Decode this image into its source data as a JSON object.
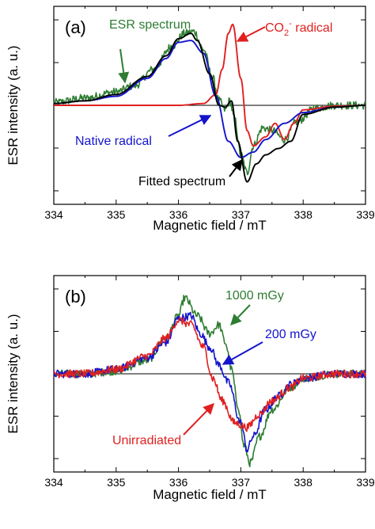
{
  "chart_data": [
    {
      "type": "line",
      "panel_label": "(a)",
      "xlabel": "Magnetic field / mT",
      "ylabel": "ESR intensity (a. u.)",
      "xlim": [
        334,
        339
      ],
      "xticks": [
        "334",
        "335",
        "336",
        "337",
        "338",
        "339"
      ],
      "y_tick_labels_shown": false,
      "series": [
        {
          "name": "ESR spectrum",
          "color": "#2e7d32",
          "noisy": true,
          "x": [
            334.0,
            334.5,
            335.0,
            335.3,
            335.6,
            335.9,
            336.1,
            336.25,
            336.4,
            336.55,
            336.65,
            336.75,
            336.82,
            336.9,
            337.0,
            337.1,
            337.2,
            337.35,
            337.5,
            337.7,
            337.9,
            338.2,
            338.5,
            339.0
          ],
          "y": [
            0.03,
            0.08,
            0.15,
            0.22,
            0.4,
            0.66,
            0.8,
            0.82,
            0.62,
            0.3,
            0.05,
            -0.05,
            0.05,
            -0.15,
            -0.55,
            -0.75,
            -0.45,
            -0.25,
            -0.28,
            -0.38,
            -0.18,
            -0.03,
            0.0,
            0.0
          ]
        },
        {
          "name": "CO2- radical",
          "color": "#e02020",
          "x": [
            334.0,
            336.0,
            336.4,
            336.6,
            336.7,
            336.8,
            336.87,
            337.0,
            337.1,
            337.2,
            337.4,
            337.55,
            337.7,
            337.85,
            338.0,
            338.5,
            339.0
          ],
          "y": [
            0.0,
            0.0,
            0.02,
            0.12,
            0.4,
            0.8,
            0.9,
            0.3,
            -0.28,
            -0.45,
            -0.35,
            -0.2,
            -0.38,
            -0.2,
            -0.05,
            -0.01,
            0.0
          ]
        },
        {
          "name": "Native radical",
          "color": "#1414cc",
          "x": [
            334.0,
            334.5,
            335.0,
            335.5,
            335.8,
            336.0,
            336.2,
            336.4,
            336.6,
            336.8,
            337.0,
            337.2,
            337.4,
            337.7,
            338.0,
            338.5,
            339.0
          ],
          "y": [
            0.02,
            0.05,
            0.1,
            0.3,
            0.52,
            0.7,
            0.72,
            0.58,
            0.1,
            -0.4,
            -0.58,
            -0.52,
            -0.38,
            -0.2,
            -0.08,
            -0.02,
            0.0
          ]
        },
        {
          "name": "Fitted spectrum",
          "color": "#000000",
          "x": [
            334.0,
            334.5,
            335.0,
            335.5,
            335.8,
            336.0,
            336.2,
            336.3,
            336.5,
            336.65,
            336.75,
            336.85,
            336.95,
            337.1,
            337.25,
            337.4,
            337.6,
            337.8,
            338.0,
            338.5,
            339.0
          ],
          "y": [
            0.02,
            0.05,
            0.12,
            0.32,
            0.55,
            0.74,
            0.8,
            0.72,
            0.35,
            0.0,
            -0.02,
            0.05,
            -0.4,
            -0.85,
            -0.65,
            -0.55,
            -0.48,
            -0.4,
            -0.1,
            -0.02,
            0.0
          ]
        }
      ],
      "annotations": [
        {
          "text": "ESR spectrum",
          "color": "#2e7d32"
        },
        {
          "text": "CO",
          "subscript": "2",
          "superscript": "-",
          "suffix": " radical",
          "color": "#e02020"
        },
        {
          "text": "Native radical",
          "color": "#1414cc"
        },
        {
          "text": "Fitted spectrum",
          "color": "#000000"
        }
      ]
    },
    {
      "type": "line",
      "panel_label": "(b)",
      "xlabel": "Magnetic field / mT",
      "ylabel": "ESR intensity (a. u.)",
      "xlim": [
        334,
        339
      ],
      "xticks": [
        "334",
        "335",
        "336",
        "337",
        "338",
        "339"
      ],
      "y_tick_labels_shown": false,
      "series": [
        {
          "name": "1000 mGy",
          "color": "#2e7d32",
          "noisy": true,
          "x": [
            334.0,
            334.5,
            335.0,
            335.5,
            335.8,
            336.0,
            336.1,
            336.3,
            336.5,
            336.65,
            336.75,
            336.85,
            336.95,
            337.05,
            337.15,
            337.3,
            337.5,
            337.8,
            338.0,
            338.5,
            339.0
          ],
          "y": [
            0.0,
            0.0,
            0.03,
            0.15,
            0.4,
            0.65,
            0.85,
            0.65,
            0.45,
            0.55,
            0.35,
            0.05,
            -0.35,
            -0.8,
            -1.0,
            -0.7,
            -0.4,
            -0.15,
            -0.05,
            0.0,
            0.0
          ]
        },
        {
          "name": "200 mGy",
          "color": "#1414cc",
          "noisy": true,
          "x": [
            334.0,
            334.5,
            335.0,
            335.5,
            335.8,
            336.0,
            336.2,
            336.35,
            336.5,
            336.65,
            336.8,
            337.0,
            337.1,
            337.2,
            337.4,
            337.6,
            337.8,
            338.0,
            338.5,
            339.0
          ],
          "y": [
            0.0,
            0.0,
            0.05,
            0.18,
            0.35,
            0.62,
            0.65,
            0.45,
            0.3,
            0.1,
            -0.1,
            -0.55,
            -0.85,
            -0.7,
            -0.4,
            -0.25,
            -0.12,
            -0.05,
            0.0,
            0.0
          ]
        },
        {
          "name": "Unirradiated",
          "color": "#e02020",
          "noisy": true,
          "x": [
            334.0,
            334.5,
            335.0,
            335.5,
            335.8,
            336.0,
            336.2,
            336.4,
            336.55,
            336.7,
            336.9,
            337.1,
            337.3,
            337.5,
            337.8,
            338.0,
            338.5,
            339.0
          ],
          "y": [
            0.0,
            0.0,
            0.05,
            0.2,
            0.4,
            0.6,
            0.55,
            0.3,
            -0.05,
            -0.3,
            -0.55,
            -0.6,
            -0.45,
            -0.3,
            -0.15,
            -0.05,
            0.0,
            0.0
          ]
        }
      ],
      "annotations": [
        {
          "text": "1000 mGy",
          "color": "#2e7d32"
        },
        {
          "text": "200 mGy",
          "color": "#1414cc"
        },
        {
          "text": "Unirradiated",
          "color": "#e02020"
        }
      ]
    }
  ]
}
